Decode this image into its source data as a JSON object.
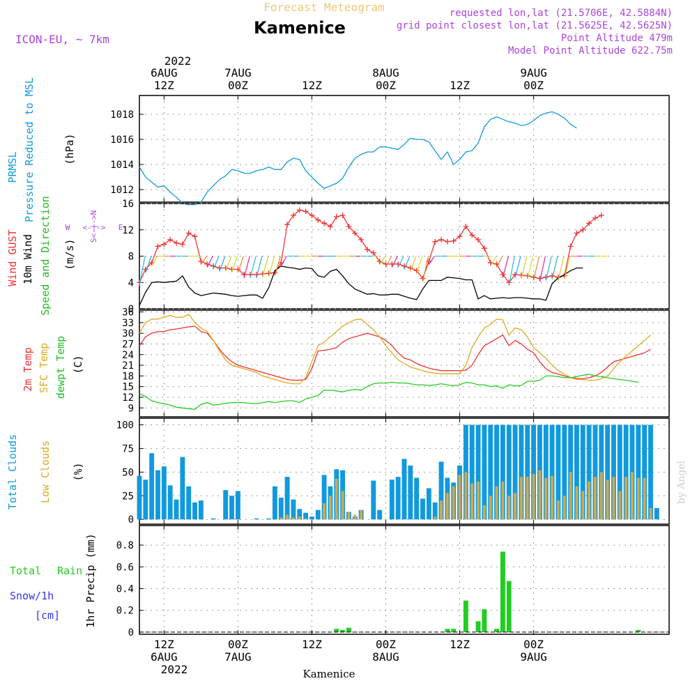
{
  "header": {
    "product": "Forecast Meteogram",
    "location": "Kamenice",
    "model": "ICON-EU, ~ 7km",
    "requested": "requested lon,lat (21.5706E, 42.5884N)",
    "gridpoint": "grid point closest lon,lat (21.5625E, 42.5625N)",
    "altitude": "Point Altitude 479m",
    "model_altitude": "Model Point Altitude 622.75m"
  },
  "watermark": "by Angel",
  "footer_location": "Kamenice",
  "time_axis": {
    "year": "2022",
    "ticks": [
      {
        "t": 0,
        "top": "6AUG",
        "mid": "12Z",
        "bottom_day": "6AUG"
      },
      {
        "t": 12,
        "top": "7AUG",
        "mid": "00Z",
        "bottom_day": "7AUG"
      },
      {
        "t": 24,
        "top": "",
        "mid": "12Z",
        "bottom_day": ""
      },
      {
        "t": 36,
        "top": "8AUG",
        "mid": "00Z",
        "bottom_day": "8AUG"
      },
      {
        "t": 48,
        "top": "",
        "mid": "12Z",
        "bottom_day": ""
      },
      {
        "t": 60,
        "top": "9AUG",
        "mid": "00Z",
        "bottom_day": "9AUG"
      }
    ]
  },
  "colors": {
    "pressure": "#1199dd",
    "gust": "#ee3333",
    "wind": "#000000",
    "t2m": "#ee3333",
    "sfc": "#ddaa22",
    "dewpt": "#22cc22",
    "total_cloud": "#1199dd",
    "low_cloud": "#ccaa55",
    "rain": "#22cc22",
    "snow": "#3333ee",
    "purple": "#aa44dd"
  },
  "panel_labels": {
    "pressure": {
      "a": "PRMSL",
      "b": "Pressure Reduced to MSL",
      "unit": "(hPa)"
    },
    "wind": {
      "a": "Wind GUST",
      "b": "10m Wind",
      "c": "Speed and Direction",
      "unit": "(m/s)",
      "compass_ns": "S<-|->N",
      "compass_w": "W",
      "compass_e": "E"
    },
    "temp": {
      "a": "2m Temp",
      "b": "SFC Temp",
      "c": "dewpt Temp",
      "unit": "(C)"
    },
    "cloud": {
      "a": "Total Clouds",
      "b": "Low Clouds",
      "unit": "(%)"
    },
    "precip": {
      "a": "Total",
      "b": "Rain",
      "c": "Snow/1h",
      "d": "[cm]",
      "unit": "1hr Precip (mm)"
    }
  },
  "chart_data": [
    {
      "type": "line",
      "name": "pressure",
      "ylim": [
        1011,
        1019.5
      ],
      "yticks": [
        "1012",
        "1014",
        "1016",
        "1018"
      ],
      "x_start": -4,
      "x_step": 1,
      "series": [
        {
          "name": "PRMSL",
          "values": [
            1013.8,
            1013.0,
            1012.6,
            1012.2,
            1012.3,
            1011.8,
            1011.4,
            1010.9,
            1010.8,
            1010.8,
            1011.0,
            1011.8,
            1012.3,
            1012.8,
            1013.1,
            1013.6,
            1013.5,
            1013.3,
            1013.3,
            1013.5,
            1013.6,
            1013.8,
            1013.6,
            1013.6,
            1014.2,
            1014.5,
            1014.4,
            1013.5,
            1013.0,
            1012.5,
            1012.1,
            1012.3,
            1012.5,
            1012.9,
            1013.8,
            1014.5,
            1014.8,
            1015.0,
            1015.0,
            1015.4,
            1015.4,
            1015.3,
            1015.2,
            1015.6,
            1016.1,
            1016.0,
            1016.0,
            1015.8,
            1015.1,
            1014.4,
            1015.0,
            1014.0,
            1014.4,
            1015.0,
            1015.1,
            1015.7,
            1017.0,
            1017.6,
            1017.8,
            1017.6,
            1017.4,
            1017.3,
            1017.1,
            1017.2,
            1017.5,
            1017.9,
            1018.1,
            1018.2,
            1018.0,
            1017.7,
            1017.2,
            1016.9
          ]
        }
      ]
    },
    {
      "type": "line",
      "name": "wind",
      "ylim": [
        0,
        16
      ],
      "yticks": [
        "0",
        "4",
        "8",
        "12",
        "16"
      ],
      "x_start": -4,
      "x_step": 1,
      "series": [
        {
          "name": "Wind GUST",
          "values": [
            4,
            6,
            7,
            9.5,
            9.8,
            10.5,
            10,
            9.8,
            11.5,
            11,
            7.2,
            6.8,
            6.5,
            6.2,
            6.2,
            6,
            6,
            5.2,
            5.2,
            5.2,
            5.3,
            5.4,
            5.5,
            7,
            12.8,
            14.2,
            15,
            14.8,
            14.2,
            13.5,
            13,
            12.5,
            14,
            14.2,
            12.5,
            11.5,
            10.5,
            9,
            8.5,
            7.2,
            6.8,
            6.8,
            6.8,
            6.5,
            6.2,
            5.8,
            4.6,
            7.2,
            10.2,
            10.5,
            10.2,
            10.3,
            11,
            12.5,
            11.2,
            10.5,
            9.2,
            7,
            6.8,
            5.2,
            4,
            5.2,
            5.1,
            5,
            4.8,
            4.6,
            4.8,
            5,
            4.8,
            5,
            9.5,
            11.5,
            12,
            13,
            13.8,
            14.2
          ]
        },
        {
          "name": "10m Wind",
          "values": [
            0.5,
            2.5,
            4,
            4.1,
            4,
            4.1,
            4.2,
            5,
            3.3,
            2.4,
            2,
            2.2,
            2.4,
            2.3,
            2.2,
            2,
            1.9,
            2,
            2.1,
            2.1,
            1.6,
            3.2,
            5.8,
            6.5,
            6.3,
            6.2,
            6,
            6.2,
            6.1,
            5,
            4.8,
            5.7,
            6,
            5,
            3.8,
            3,
            2.6,
            2.2,
            2.3,
            2.1,
            2.1,
            2.2,
            2.2,
            1.9,
            1.6,
            1.4,
            3,
            4.3,
            4.3,
            4.3,
            4.8,
            4.7,
            4.6,
            4.4,
            4.4,
            1.5,
            2,
            1.5,
            1.6,
            1.7,
            1.6,
            1.7,
            1.7,
            1.6,
            1.5,
            1.5,
            1.3,
            3.8,
            4.7,
            5.2,
            5.8,
            6.2,
            6.2
          ]
        }
      ]
    },
    {
      "type": "line",
      "name": "temperature",
      "ylim": [
        6.5,
        36.5
      ],
      "yticks": [
        "9",
        "12",
        "15",
        "18",
        "21",
        "24",
        "27",
        "30",
        "33",
        "36"
      ],
      "x_start": -4,
      "x_step": 1,
      "series": [
        {
          "name": "2m Temp",
          "values": [
            26.5,
            29,
            30,
            30.5,
            30.5,
            31,
            31.2,
            31.5,
            31.8,
            32,
            30.5,
            30,
            28,
            25.5,
            23.5,
            22,
            21,
            20.5,
            20,
            19.5,
            19,
            18.5,
            18,
            17.5,
            17,
            16.8,
            16.8,
            17,
            20,
            25,
            25.2,
            25.5,
            26,
            27.5,
            28.5,
            29,
            29.5,
            30,
            29.5,
            29,
            28,
            26.5,
            24.5,
            23,
            22.5,
            21.5,
            20.8,
            20.2,
            19.8,
            19.5,
            19.5,
            19.5,
            19.5,
            19.6,
            21,
            24,
            26.5,
            27.5,
            28.5,
            29.5,
            26.5,
            28,
            27,
            25.5,
            24.5,
            22,
            20,
            19,
            18.5,
            18,
            17.5,
            17.3,
            17.2,
            17.5,
            18,
            19,
            20.5,
            22,
            22.5,
            23,
            23.5,
            24,
            24.5,
            25.5
          ]
        },
        {
          "name": "SFC Temp",
          "values": [
            30,
            33,
            34,
            34,
            34.5,
            35,
            34.5,
            34.5,
            35.3,
            33,
            31.5,
            30.5,
            28,
            25,
            22.5,
            21,
            20.5,
            20,
            19.5,
            19,
            18,
            17.5,
            17,
            16.5,
            16,
            15.8,
            15.8,
            17.5,
            22,
            26.5,
            27.5,
            29,
            30.5,
            32,
            33,
            33.8,
            34,
            32.5,
            31,
            29,
            26.5,
            24.5,
            22.5,
            21.5,
            20.5,
            20,
            19.5,
            19,
            18.8,
            18.6,
            18.6,
            18.6,
            18.6,
            21,
            26,
            29,
            31.5,
            32.5,
            34,
            33.8,
            29.5,
            31.5,
            31,
            29,
            26,
            24.5,
            23,
            21,
            19.5,
            18.5,
            17.5,
            17,
            17,
            16.8,
            16.8,
            17.2,
            18,
            20,
            22,
            23.5,
            25,
            26.5,
            28,
            29.5
          ]
        },
        {
          "name": "dewpt Temp",
          "values": [
            13,
            12.2,
            11,
            10.5,
            10.2,
            9.8,
            9.2,
            9,
            8.8,
            8.6,
            10,
            10.5,
            9.8,
            10,
            10.3,
            10.5,
            10.5,
            10.5,
            10.3,
            10.2,
            10.5,
            10.8,
            10.5,
            10.8,
            11,
            11,
            10.5,
            11.5,
            12,
            12.5,
            14,
            14,
            13.8,
            13.5,
            14,
            14.2,
            14,
            15,
            15.8,
            16,
            16,
            16.2,
            16,
            16,
            15.8,
            15.5,
            15.5,
            15.3,
            15.5,
            15.8,
            15.5,
            15.2,
            15.5,
            16.2,
            16,
            15.5,
            15.5,
            15,
            15.2,
            14.5,
            15.5,
            15.2,
            15.3,
            16.5,
            16.5,
            16.8,
            18,
            18,
            17.8,
            17.5,
            17.5,
            17.8,
            18.2,
            18.5,
            18,
            17.8,
            17.5,
            17.2,
            17,
            16.8,
            16.5,
            16.2
          ]
        }
      ]
    },
    {
      "type": "bar",
      "name": "clouds",
      "ylim": [
        -5,
        107
      ],
      "yticks": [
        "0",
        "25",
        "50",
        "75",
        "100"
      ],
      "x_start": -4,
      "x_step": 1,
      "series": [
        {
          "name": "Total Clouds",
          "values": [
            46,
            42,
            70,
            52,
            56,
            36,
            21,
            66,
            35,
            18,
            20,
            0,
            1,
            0,
            31,
            25,
            30,
            0,
            0,
            1,
            0,
            1,
            35,
            23,
            45,
            21,
            11,
            7,
            3,
            10,
            47,
            35,
            53,
            52,
            8,
            3,
            10,
            0,
            41,
            10,
            0,
            42,
            45,
            64,
            57,
            44,
            22,
            33,
            18,
            61,
            44,
            39,
            57,
            100,
            100,
            100,
            100,
            100,
            100,
            100,
            100,
            100,
            100,
            100,
            100,
            100,
            100,
            100,
            100,
            100,
            100,
            100,
            100,
            100,
            100,
            100,
            100,
            100,
            100,
            100,
            100,
            100,
            100,
            100,
            12
          ]
        },
        {
          "name": "Low Clouds",
          "values": [
            0,
            0,
            0,
            0,
            0,
            0,
            0,
            0,
            0,
            0,
            0,
            0,
            0,
            0,
            0,
            0,
            0,
            0,
            0,
            0,
            0,
            0,
            0,
            2,
            5,
            2,
            3,
            1,
            0,
            0,
            17,
            25,
            43,
            30,
            8,
            5,
            10,
            0,
            0,
            0,
            0,
            0,
            0,
            0,
            0,
            0,
            0,
            0,
            3,
            20,
            28,
            35,
            47,
            50,
            38,
            40,
            15,
            25,
            35,
            40,
            25,
            28,
            45,
            45,
            48,
            52,
            44,
            46,
            20,
            25,
            50,
            35,
            30,
            40,
            45,
            50,
            42,
            45,
            30,
            45,
            50,
            44,
            44,
            12
          ]
        }
      ]
    },
    {
      "type": "bar",
      "name": "precipitation",
      "ylim": [
        -0.02,
        0.98
      ],
      "yticks": [
        "0",
        "0.2",
        "0.4",
        "0.6",
        "0.8"
      ],
      "x_start": -4,
      "x_step": 1,
      "series": [
        {
          "name": "Total",
          "values": [
            0,
            0,
            0,
            0,
            0,
            0,
            0,
            0,
            0,
            0,
            0,
            0,
            0,
            0,
            0,
            0,
            0,
            0,
            0,
            0,
            0,
            0,
            0,
            0,
            0,
            0,
            0,
            0,
            0,
            0,
            0,
            0,
            0.03,
            0.02,
            0.04,
            0,
            0,
            0,
            0,
            0,
            0,
            0,
            0,
            0,
            0,
            0,
            0,
            0,
            0,
            0,
            0.03,
            0.03,
            0,
            0.29,
            0,
            0.1,
            0.21,
            0,
            0.03,
            0.74,
            0.47,
            0,
            0,
            0,
            0,
            0,
            0,
            0,
            0,
            0,
            0,
            0,
            0,
            0,
            0,
            0,
            0,
            0,
            0,
            0,
            0,
            0.02
          ]
        }
      ]
    }
  ]
}
